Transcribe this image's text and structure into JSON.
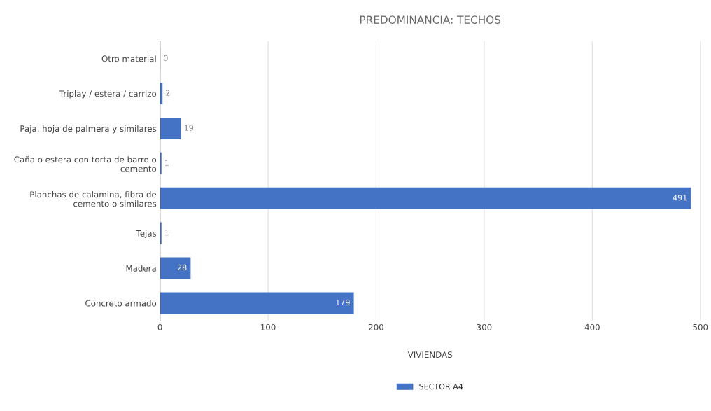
{
  "chart_data": {
    "type": "bar",
    "orientation": "horizontal",
    "title": "PREDOMINANCIA: TECHOS",
    "xlabel": "VIVIENDAS",
    "categories": [
      "Otro material",
      "Triplay / estera / carrizo",
      "Paja, hoja de palmera y similares",
      "Caña o estera con torta de barro o cemento",
      "Planchas de calamina, fibra de cemento o similares",
      "Tejas",
      "Madera",
      "Concreto armado"
    ],
    "series": [
      {
        "name": "SECTOR A4",
        "color": "#4472c4",
        "values": [
          0,
          2,
          19,
          1,
          491,
          1,
          28,
          179
        ]
      }
    ],
    "xlim": [
      0,
      500
    ],
    "xticks": [
      0,
      100,
      200,
      300,
      400,
      500
    ],
    "grid": "x",
    "legend": "bottom",
    "data_labels": true
  }
}
